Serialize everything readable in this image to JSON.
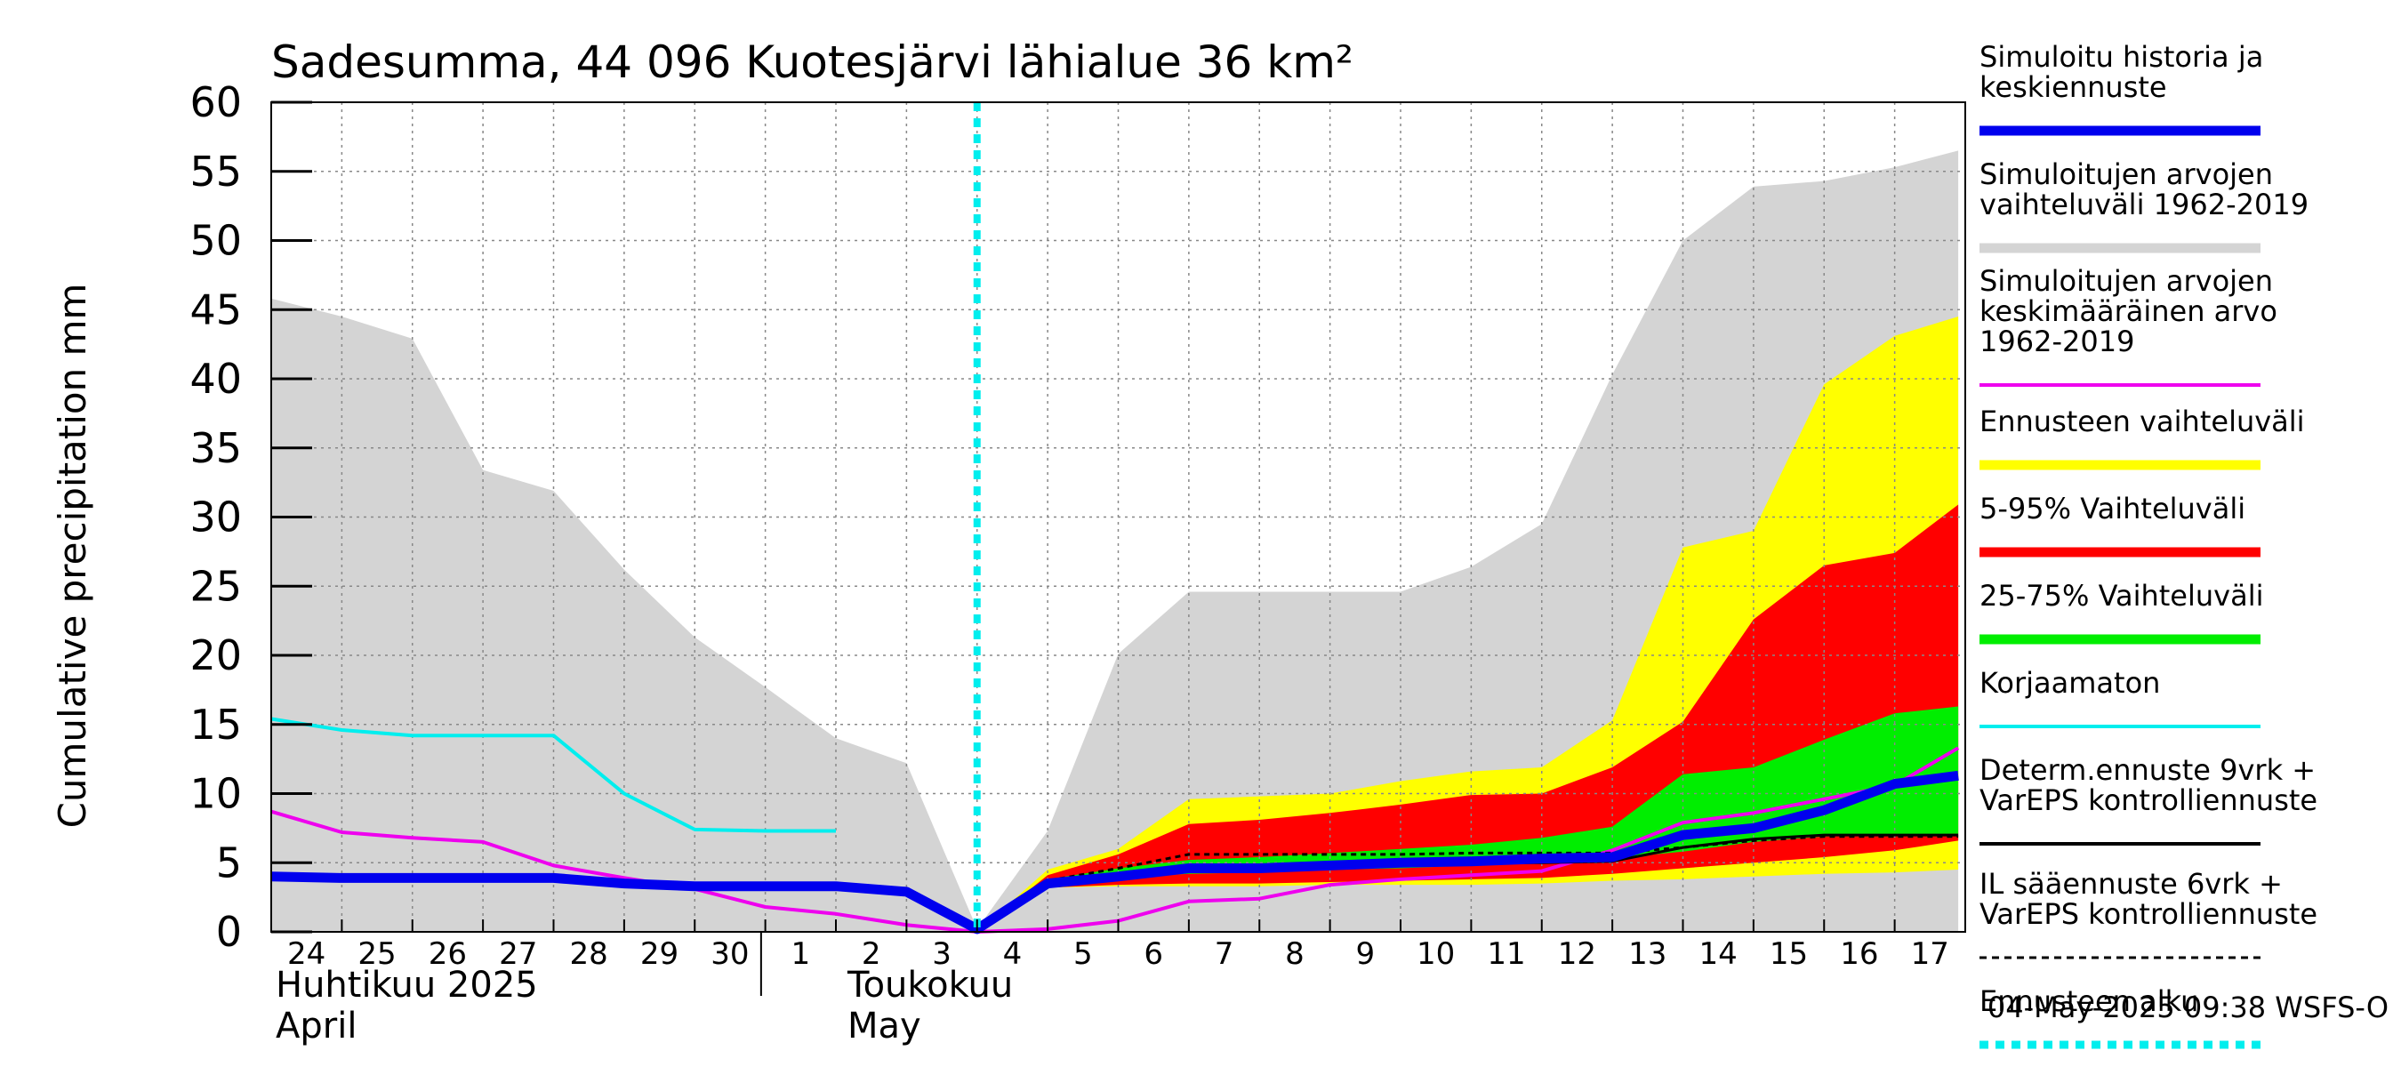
{
  "chart_data": {
    "type": "area",
    "title": "Sadesumma, 44 096 Kuotesjärvi lähialue 36 km²",
    "ylabel": "Cumulative precipitation   mm",
    "ylim": [
      0,
      60
    ],
    "yticks": [
      0,
      5,
      10,
      15,
      20,
      25,
      30,
      35,
      40,
      45,
      50,
      55,
      60
    ],
    "grid": true,
    "legend_placement": "right",
    "x_start_day": 24,
    "x_end": 17.9,
    "x_tick_labels": [
      "24",
      "25",
      "26",
      "27",
      "28",
      "29",
      "30",
      "1",
      "2",
      "3",
      "4",
      "5",
      "6",
      "7",
      "8",
      "9",
      "10",
      "11",
      "12",
      "13",
      "14",
      "15",
      "16",
      "17"
    ],
    "month_labels": [
      {
        "line1": "Huhtikuu  2025",
        "line2": "April",
        "at_day": 24
      },
      {
        "line1": "Toukokuu",
        "line2": "May",
        "at_day": 2
      }
    ],
    "forecast_start_day": 4,
    "timestamp": "04-May-2025 09:38 WSFS-O",
    "colors": {
      "history_range": "#d4d4d4",
      "history_mean": "#ee00ee",
      "ensemble_range": "#ffff00",
      "p5_95": "#ff0000",
      "p25_75": "#00ee00",
      "mean_forecast": "#0000ee",
      "uncorrected": "#00eeee",
      "determ": "#000000",
      "il_forecast": "#000000",
      "forecast_start": "#00eeee"
    },
    "series": [
      {
        "name": "Simuloitujen arvojen vaihteluväli 1962-2019",
        "kind": "band",
        "x": [
          24,
          25,
          26,
          27,
          28,
          29,
          30,
          1,
          2,
          3,
          4,
          5,
          6,
          7,
          8,
          9,
          10,
          11,
          12,
          13,
          14,
          15,
          16,
          17,
          17.9
        ],
        "low": [
          0,
          0,
          0,
          0,
          0,
          0,
          0,
          0,
          0,
          0,
          0,
          0,
          0,
          0,
          0,
          0,
          0,
          0,
          0,
          0,
          0,
          0,
          0,
          0,
          0
        ],
        "high": [
          45.8,
          44.5,
          42.9,
          33.4,
          31.9,
          26.2,
          21.3,
          17.7,
          14.0,
          12.2,
          0.2,
          7.3,
          20.1,
          24.6,
          24.6,
          24.6,
          24.6,
          26.4,
          29.5,
          40.3,
          50.0,
          53.9,
          54.3,
          55.3,
          56.5
        ]
      },
      {
        "name": "Ennusteen vaihteluväli",
        "kind": "band",
        "x": [
          4,
          5,
          6,
          7,
          8,
          9,
          10,
          11,
          12,
          13,
          14,
          15,
          16,
          17,
          17.9
        ],
        "low": [
          0,
          3.2,
          3.3,
          3.3,
          3.3,
          3.4,
          3.4,
          3.4,
          3.5,
          3.7,
          3.8,
          4.0,
          4.2,
          4.3,
          4.5
        ],
        "high": [
          0,
          4.5,
          6.0,
          9.6,
          9.8,
          10.0,
          10.9,
          11.6,
          11.9,
          15.3,
          27.8,
          29.0,
          39.6,
          43.1,
          44.5
        ]
      },
      {
        "name": "5-95% Vaihteluväli",
        "kind": "band",
        "x": [
          4,
          5,
          6,
          7,
          8,
          9,
          10,
          11,
          12,
          13,
          14,
          15,
          16,
          17,
          17.9
        ],
        "low": [
          0,
          3.2,
          3.4,
          3.5,
          3.5,
          3.6,
          3.7,
          3.8,
          3.9,
          4.2,
          4.6,
          5.0,
          5.4,
          5.9,
          6.6
        ],
        "high": [
          0,
          4.1,
          5.6,
          7.8,
          8.1,
          8.6,
          9.2,
          9.9,
          10.0,
          11.9,
          15.2,
          22.6,
          26.5,
          27.4,
          30.9
        ]
      },
      {
        "name": "25-75% Vaihteluväli",
        "kind": "band",
        "x": [
          4,
          5,
          6,
          7,
          8,
          9,
          10,
          11,
          12,
          13,
          14,
          15,
          16,
          17,
          17.9
        ],
        "low": [
          0,
          3.6,
          3.9,
          4.2,
          4.3,
          4.5,
          4.6,
          4.8,
          5.0,
          5.3,
          5.8,
          6.5,
          6.9,
          7.0,
          7.1
        ],
        "high": [
          0,
          3.8,
          4.6,
          5.2,
          5.4,
          5.7,
          6.0,
          6.3,
          6.8,
          7.6,
          11.4,
          11.9,
          13.9,
          15.8,
          16.3
        ]
      },
      {
        "name": "Simuloitujen arvojen keskimääräinen arvo 1962-2019",
        "kind": "line",
        "x": [
          24,
          25,
          26,
          27,
          28,
          29,
          30,
          1,
          2,
          3,
          4,
          5,
          6,
          7,
          8,
          9,
          10,
          11,
          12,
          13,
          14,
          15,
          16,
          17,
          17.9
        ],
        "y": [
          8.7,
          7.2,
          6.8,
          6.5,
          4.8,
          3.9,
          3.1,
          1.8,
          1.3,
          0.5,
          0.0,
          0.2,
          0.8,
          2.2,
          2.4,
          3.4,
          3.8,
          4.1,
          4.4,
          5.9,
          7.9,
          8.6,
          9.6,
          10.6,
          13.3
        ]
      },
      {
        "name": "Korjaamaton",
        "kind": "line",
        "x": [
          24,
          25,
          26,
          27,
          28,
          29,
          30,
          1,
          2
        ],
        "y": [
          15.4,
          14.6,
          14.2,
          14.2,
          14.2,
          10.0,
          7.4,
          7.3,
          7.3
        ]
      },
      {
        "name": "Determ.ennuste 9vrk + VarEPS kontrolliennuste",
        "kind": "line",
        "x": [
          4,
          5,
          6,
          7,
          8,
          9,
          10,
          11,
          12,
          13,
          14,
          15,
          16,
          17,
          17.9
        ],
        "y": [
          0.2,
          3.5,
          4.0,
          4.7,
          4.7,
          4.8,
          5.0,
          5.0,
          5.0,
          5.1,
          6.1,
          6.7,
          7.0,
          7.0,
          7.0
        ]
      },
      {
        "name": "IL sääennuste 6vrk  +  VarEPS kontrolliennuste",
        "kind": "dashed",
        "x": [
          4,
          5,
          6,
          7,
          8,
          9,
          10,
          11,
          12,
          13,
          14,
          15,
          16,
          17,
          17.9
        ],
        "y": [
          0.2,
          3.7,
          4.6,
          5.6,
          5.6,
          5.6,
          5.6,
          5.7,
          5.7,
          5.7,
          6.1,
          6.6,
          6.9,
          6.9,
          6.9
        ]
      },
      {
        "name": "Simuloitu historia ja keskiennuste",
        "kind": "thickline",
        "x": [
          24,
          25,
          26,
          27,
          28,
          29,
          30,
          1,
          2,
          3,
          4,
          5,
          6,
          7,
          8,
          9,
          10,
          11,
          12,
          13,
          14,
          15,
          16,
          17,
          17.9
        ],
        "y": [
          4.0,
          3.9,
          3.9,
          3.9,
          3.9,
          3.5,
          3.3,
          3.3,
          3.3,
          2.9,
          0.2,
          3.5,
          4.0,
          4.6,
          4.6,
          4.8,
          5.0,
          5.1,
          5.3,
          5.4,
          7.0,
          7.5,
          8.8,
          10.7,
          11.3
        ]
      }
    ],
    "legend": [
      {
        "label": "Simuloitu historia ja\nkeskiennuste",
        "style": "thick",
        "color": "#0000ee"
      },
      {
        "label": "Simuloitujen arvojen\nvaihteluväli 1962-2019",
        "style": "thick",
        "color": "#d4d4d4"
      },
      {
        "label": "Simuloitujen arvojen\nkeskimääräinen arvo\n   1962-2019",
        "style": "line",
        "color": "#ee00ee"
      },
      {
        "label": "Ennusteen vaihteluväli",
        "style": "thick",
        "color": "#ffff00"
      },
      {
        "label": "5-95% Vaihteluväli",
        "style": "thick",
        "color": "#ff0000"
      },
      {
        "label": "25-75% Vaihteluväli",
        "style": "thick",
        "color": "#00ee00"
      },
      {
        "label": "Korjaamaton",
        "style": "line",
        "color": "#00eeee"
      },
      {
        "label": "Determ.ennuste 9vrk +\nVarEPS kontrolliennuste",
        "style": "line",
        "color": "#000000"
      },
      {
        "label": "IL sääennuste 6vrk  +\n  VarEPS kontrolliennuste",
        "style": "dashed",
        "color": "#000000"
      },
      {
        "label": "Ennusteen alku",
        "style": "dotted",
        "color": "#00eeee"
      }
    ]
  }
}
